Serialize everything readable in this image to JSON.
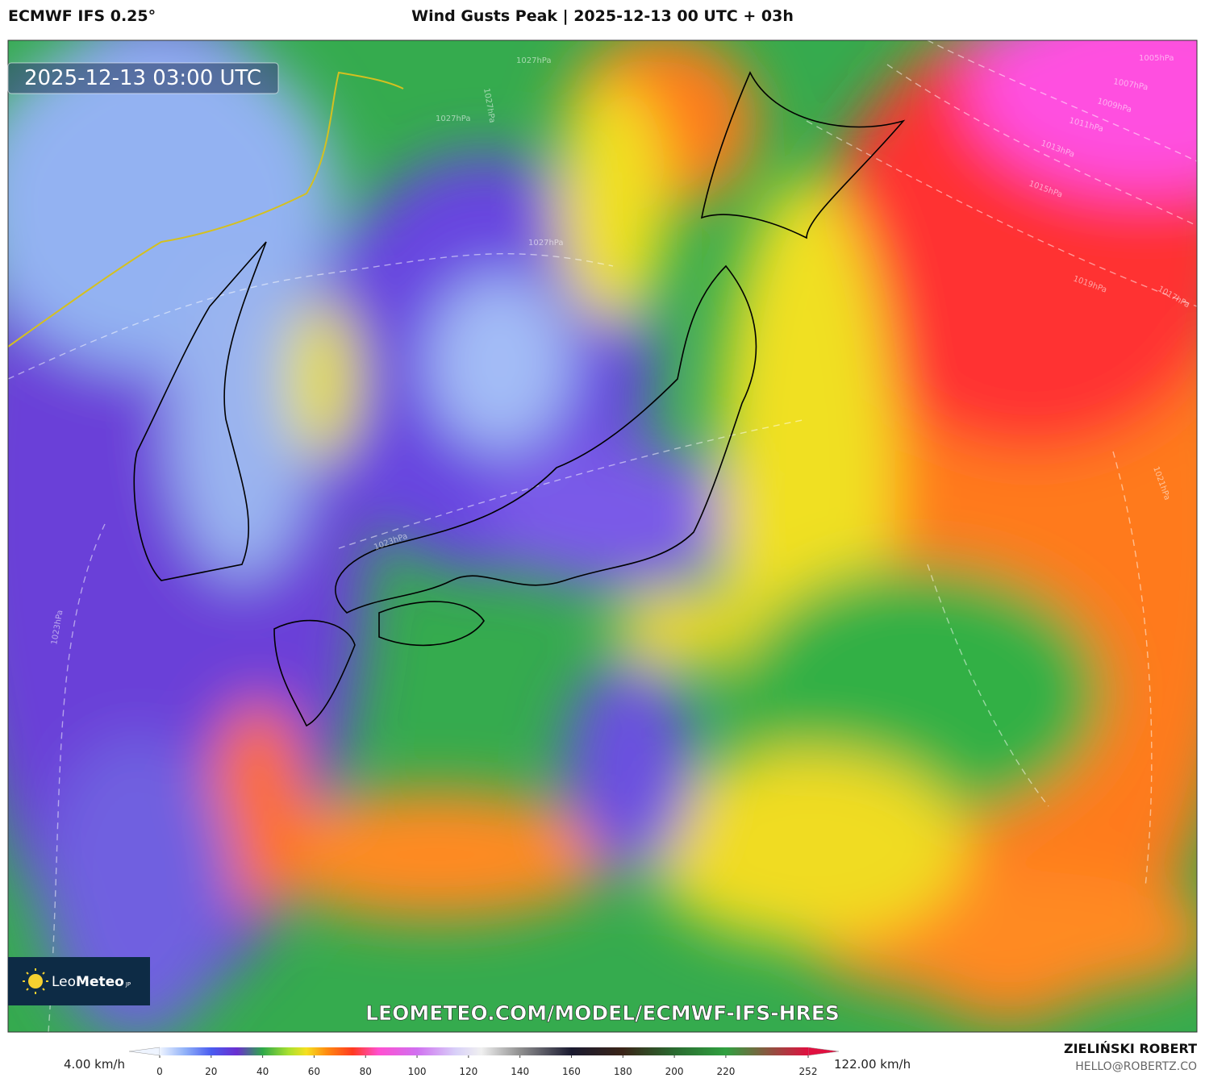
{
  "header": {
    "model": "ECMWF IFS 0.25°",
    "title": "Wind Gusts Peak | 2025-12-13 00 UTC + 03h"
  },
  "map": {
    "timestamp": "2025-12-13 03:00 UTC",
    "isobar_labels": [
      "1027hPa",
      "1027hPa",
      "1027hPa",
      "1027hPa",
      "1023hPa",
      "1023hPa",
      "1005hPa",
      "1007hPa",
      "1009hPa",
      "1011hPa",
      "1013hPa",
      "1015hPa",
      "1019hPa",
      "1017hPa",
      "1021hPa"
    ],
    "watermark": "LEOMETEO.COM/MODEL/ECMWF-IFS-HRES"
  },
  "logo": {
    "name_light": "Leo",
    "name_bold": "Meteo",
    "suffix": "JP"
  },
  "colorbar": {
    "min_label": "4.00 km/h",
    "max_label": "122.00 km/h",
    "lim": [
      0,
      252
    ],
    "ticks": [
      0,
      20,
      40,
      60,
      80,
      100,
      120,
      140,
      160,
      180,
      200,
      220,
      252
    ],
    "stops": [
      [
        0,
        "#eef4ff"
      ],
      [
        10,
        "#8fb0f8"
      ],
      [
        20,
        "#4a5cf0"
      ],
      [
        30,
        "#6a2fd0"
      ],
      [
        40,
        "#2ea84a"
      ],
      [
        50,
        "#a8e030"
      ],
      [
        57,
        "#f5e020"
      ],
      [
        65,
        "#ff8a10"
      ],
      [
        75,
        "#ff3a20"
      ],
      [
        85,
        "#ff50d0"
      ],
      [
        100,
        "#d070f0"
      ],
      [
        115,
        "#d8d0f8"
      ],
      [
        125,
        "#f0f0f0"
      ],
      [
        140,
        "#909090"
      ],
      [
        160,
        "#1a1a30"
      ],
      [
        180,
        "#3a2418"
      ],
      [
        200,
        "#2a6a30"
      ],
      [
        220,
        "#30a040"
      ],
      [
        252,
        "#e01040"
      ]
    ]
  },
  "credit": {
    "author": "ZIELIŃSKI ROBERT",
    "email": "HELLO@ROBERTZ.CO"
  }
}
